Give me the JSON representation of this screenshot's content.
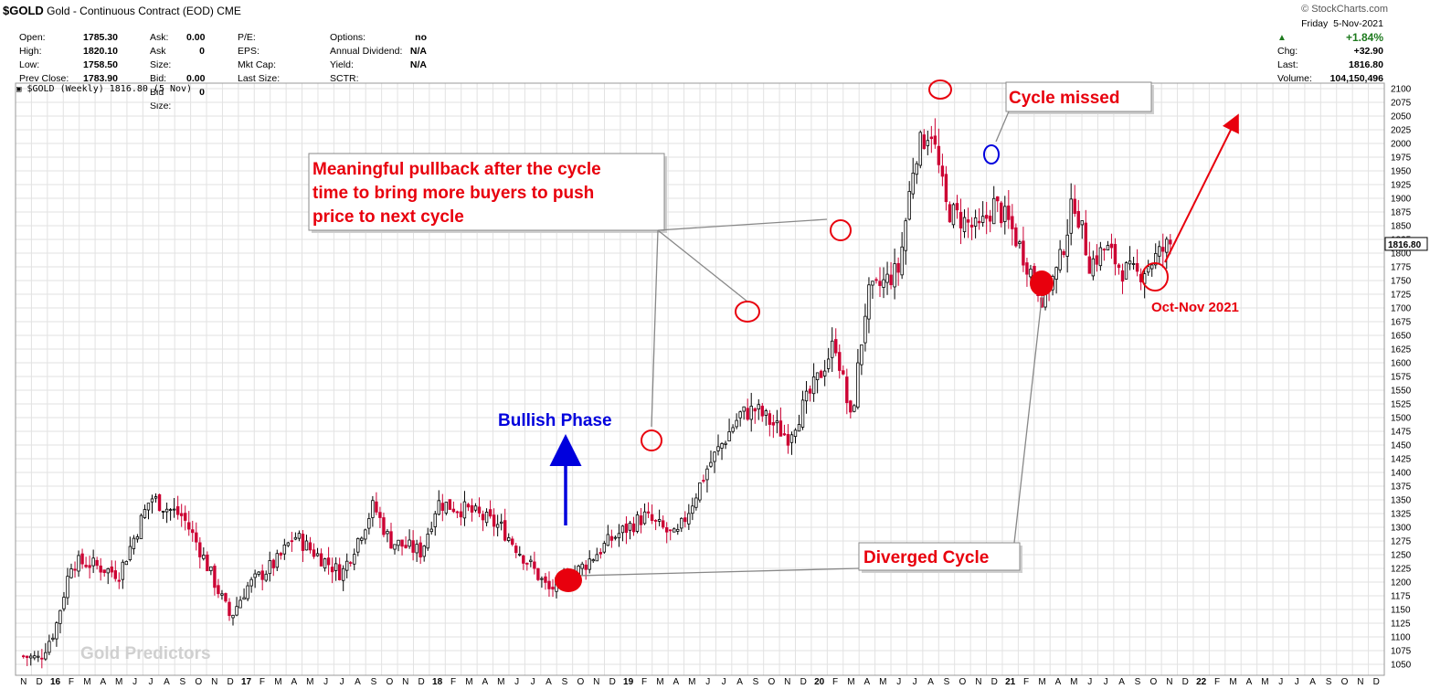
{
  "header": {
    "symbol": "$GOLD",
    "name": "Gold - Continuous Contract (EOD)",
    "exchange": "CME",
    "site": "© StockCharts.com",
    "chart_label": "$GOLD (Weekly) 1816.80 (5 Nov)"
  },
  "quote": {
    "col1": [
      [
        "Open:",
        "1785.30"
      ],
      [
        "High:",
        "1820.10"
      ],
      [
        "Low:",
        "1758.50"
      ],
      [
        "Prev Close:",
        "1783.90"
      ]
    ],
    "col2": [
      [
        "Ask:",
        "0.00"
      ],
      [
        "Ask Size:",
        "0"
      ],
      [
        "Bid:",
        "0.00"
      ],
      [
        "Bid Size:",
        "0"
      ]
    ],
    "col3": [
      [
        "P/E:",
        ""
      ],
      [
        "EPS:",
        ""
      ],
      [
        "Mkt Cap:",
        ""
      ],
      [
        "Last Size:",
        ""
      ]
    ],
    "col4": [
      [
        "Options:",
        "no"
      ],
      [
        "Annual Dividend:",
        "N/A"
      ],
      [
        "Yield:",
        "N/A"
      ],
      [
        "SCTR:",
        ""
      ]
    ],
    "right": {
      "day": "Friday",
      "date": "5-Nov-2021",
      "pct": "+1.84%",
      "chg_label": "Chg:",
      "chg": "+32.90",
      "last_label": "Last:",
      "last": "1816.80",
      "volume_label": "Volume:",
      "volume": "104,150,496"
    }
  },
  "annotations": {
    "pullback": [
      "Meaningful pullback after the cycle",
      "time to bring more buyers to push",
      "price to next cycle"
    ],
    "cycle_missed": "Cycle missed",
    "bullish": "Bullish Phase",
    "diverged": "Diverged Cycle",
    "octnov": "Oct-Nov 2021",
    "watermark": "Gold Predictors"
  },
  "colors": {
    "up": "#000000",
    "down": "#cc0033",
    "anno_red": "#e8000d",
    "anno_blue": "#0000dd",
    "grid": "#e2e2e2"
  },
  "chart_data": {
    "type": "candlestick",
    "title": "$GOLD (Weekly) 1816.80 (5 Nov)",
    "ylim": [
      1030,
      2110
    ],
    "y_ticks": [
      1050,
      1075,
      1100,
      1125,
      1150,
      1175,
      1200,
      1225,
      1250,
      1275,
      1300,
      1325,
      1350,
      1375,
      1400,
      1425,
      1450,
      1475,
      1500,
      1525,
      1550,
      1575,
      1600,
      1625,
      1650,
      1675,
      1700,
      1725,
      1750,
      1775,
      1800,
      1825,
      1850,
      1875,
      1900,
      1925,
      1950,
      1975,
      2000,
      2025,
      2050,
      2075,
      2100
    ],
    "last_price_tag": "1816.80",
    "x_labels": [
      "N",
      "D",
      "16",
      "F",
      "M",
      "A",
      "M",
      "J",
      "J",
      "A",
      "S",
      "O",
      "N",
      "D",
      "17",
      "F",
      "M",
      "A",
      "M",
      "J",
      "J",
      "A",
      "S",
      "O",
      "N",
      "D",
      "18",
      "F",
      "M",
      "A",
      "M",
      "J",
      "J",
      "A",
      "S",
      "O",
      "N",
      "D",
      "19",
      "F",
      "M",
      "A",
      "M",
      "J",
      "J",
      "A",
      "S",
      "O",
      "N",
      "D",
      "20",
      "F",
      "M",
      "A",
      "M",
      "J",
      "J",
      "A",
      "S",
      "O",
      "N",
      "D",
      "21",
      "F",
      "M",
      "A",
      "M",
      "J",
      "J",
      "A",
      "S",
      "O",
      "N",
      "D",
      "22",
      "F",
      "M",
      "A",
      "M",
      "J",
      "J",
      "A",
      "S",
      "O",
      "N",
      "D"
    ],
    "bold_x_labels": [
      "16",
      "17",
      "18",
      "19",
      "20",
      "21",
      "22"
    ],
    "close_path": [
      {
        "date": "2015-11",
        "close": 1065
      },
      {
        "date": "2015-12",
        "close": 1060
      },
      {
        "date": "2016-01",
        "close": 1115
      },
      {
        "date": "2016-02",
        "close": 1235
      },
      {
        "date": "2016-03",
        "close": 1235
      },
      {
        "date": "2016-05",
        "close": 1215
      },
      {
        "date": "2016-07",
        "close": 1355
      },
      {
        "date": "2016-08",
        "close": 1335
      },
      {
        "date": "2016-09",
        "close": 1320
      },
      {
        "date": "2016-10",
        "close": 1265
      },
      {
        "date": "2016-12",
        "close": 1135
      },
      {
        "date": "2017-01",
        "close": 1190
      },
      {
        "date": "2017-03",
        "close": 1240
      },
      {
        "date": "2017-04",
        "close": 1285
      },
      {
        "date": "2017-05",
        "close": 1260
      },
      {
        "date": "2017-07",
        "close": 1215
      },
      {
        "date": "2017-09",
        "close": 1340
      },
      {
        "date": "2017-10",
        "close": 1275
      },
      {
        "date": "2017-12",
        "close": 1255
      },
      {
        "date": "2018-01",
        "close": 1345
      },
      {
        "date": "2018-03",
        "close": 1330
      },
      {
        "date": "2018-05",
        "close": 1300
      },
      {
        "date": "2018-07",
        "close": 1225
      },
      {
        "date": "2018-08",
        "close": 1185
      },
      {
        "date": "2018-10",
        "close": 1225
      },
      {
        "date": "2018-12",
        "close": 1280
      },
      {
        "date": "2019-02",
        "close": 1320
      },
      {
        "date": "2019-04",
        "close": 1280
      },
      {
        "date": "2019-06",
        "close": 1410
      },
      {
        "date": "2019-08",
        "close": 1505
      },
      {
        "date": "2019-09",
        "close": 1515
      },
      {
        "date": "2019-11",
        "close": 1465
      },
      {
        "date": "2020-01",
        "close": 1575
      },
      {
        "date": "2020-02",
        "close": 1640
      },
      {
        "date": "2020-03",
        "close": 1490
      },
      {
        "date": "2020-04",
        "close": 1720
      },
      {
        "date": "2020-06",
        "close": 1770
      },
      {
        "date": "2020-07",
        "close": 1980
      },
      {
        "date": "2020-08",
        "close": 2030
      },
      {
        "date": "2020-09",
        "close": 1880
      },
      {
        "date": "2020-11",
        "close": 1840
      },
      {
        "date": "2020-12",
        "close": 1890
      },
      {
        "date": "2021-01",
        "close": 1850
      },
      {
        "date": "2021-03",
        "close": 1720
      },
      {
        "date": "2021-04",
        "close": 1770
      },
      {
        "date": "2021-05",
        "close": 1900
      },
      {
        "date": "2021-06",
        "close": 1780
      },
      {
        "date": "2021-07",
        "close": 1810
      },
      {
        "date": "2021-08",
        "close": 1770
      },
      {
        "date": "2021-09",
        "close": 1760
      },
      {
        "date": "2021-11",
        "close": 1817
      }
    ]
  }
}
